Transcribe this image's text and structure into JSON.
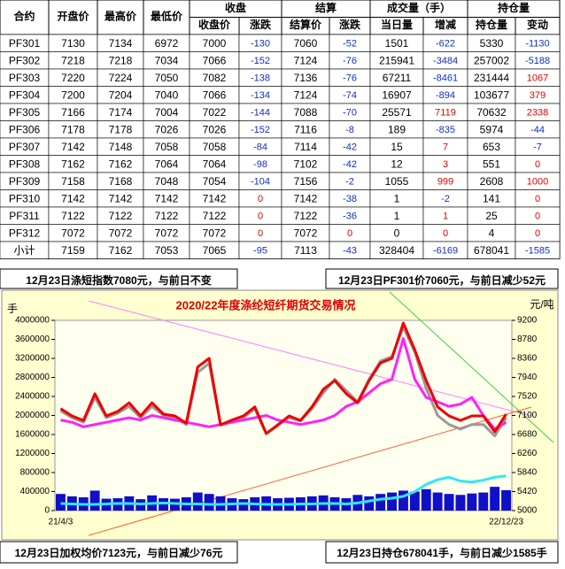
{
  "table": {
    "header_row1": [
      "合约",
      "开盘价",
      "最高价",
      "最低价",
      "收盘",
      "结算",
      "成交量（手）",
      "持仓量"
    ],
    "header_row2": [
      "收盘价",
      "涨跌",
      "结算价",
      "涨跌",
      "当日量",
      "增减",
      "持仓量",
      "变动"
    ],
    "rows": [
      [
        "PF301",
        7130,
        7134,
        6972,
        7000,
        -130,
        7060,
        -52,
        1501,
        -622,
        5330,
        -1130
      ],
      [
        "PF302",
        7218,
        7218,
        7034,
        7066,
        -152,
        7124,
        -76,
        215941,
        -3484,
        257002,
        -5188
      ],
      [
        "PF303",
        7220,
        7224,
        7050,
        7082,
        -138,
        7136,
        -76,
        67211,
        -8461,
        231444,
        1067
      ],
      [
        "PF304",
        7200,
        7204,
        7040,
        7066,
        -134,
        7124,
        -74,
        16907,
        -894,
        103677,
        379
      ],
      [
        "PF305",
        7166,
        7174,
        7004,
        7022,
        -144,
        7088,
        -70,
        25571,
        7119,
        70632,
        2338
      ],
      [
        "PF306",
        7178,
        7178,
        7026,
        7026,
        -152,
        7116,
        -8,
        189,
        -835,
        5974,
        -44
      ],
      [
        "PF307",
        7142,
        7148,
        7058,
        7058,
        -84,
        7114,
        -42,
        15,
        7,
        653,
        -7
      ],
      [
        "PF308",
        7162,
        7162,
        7064,
        7064,
        -98,
        7102,
        -42,
        12,
        3,
        551,
        0
      ],
      [
        "PF309",
        7158,
        7168,
        7048,
        7054,
        -104,
        7156,
        -2,
        1055,
        999,
        2608,
        1000
      ],
      [
        "PF310",
        7142,
        7142,
        7142,
        7142,
        0,
        7142,
        -38,
        1,
        -2,
        141,
        0
      ],
      [
        "PF311",
        7122,
        7122,
        7122,
        7122,
        0,
        7122,
        -36,
        1,
        1,
        25,
        0
      ],
      [
        "PF312",
        7072,
        7072,
        7072,
        7072,
        0,
        7072,
        0,
        0,
        0,
        4,
        0
      ],
      [
        "小计",
        7159,
        7162,
        7053,
        7065,
        -95,
        7113,
        -43,
        328404,
        -6169,
        678041,
        -1585
      ]
    ]
  },
  "notes": [
    "12月23日涤短指数7080元，与前日不变",
    "12月23日PF301价7060元，与前日减少52元",
    "12月23日加权均价7123元，与前日减少76元",
    "12月23日持仓678041手，与前日减少1585手"
  ],
  "chart_data": {
    "type": "combo",
    "title": "2020/22年度涤纶短纤期货交易情况",
    "y_unit": "手",
    "y2_unit": "元/吨",
    "categories": [
      "21/4/3",
      null,
      null,
      null,
      null,
      null,
      null,
      null,
      null,
      null,
      null,
      null,
      null,
      null,
      null,
      null,
      null,
      null,
      null,
      null,
      null,
      null,
      null,
      null,
      null,
      null,
      null,
      null,
      null,
      null,
      null,
      null,
      null,
      null,
      null,
      null,
      null,
      null,
      null,
      "22/12/23"
    ],
    "ylim": [
      0,
      4000000
    ],
    "yticks": [
      0,
      400000,
      800000,
      1200000,
      1600000,
      2000000,
      2400000,
      2800000,
      3200000,
      3600000,
      4000000
    ],
    "y2lim": [
      5000,
      9200
    ],
    "y2ticks": [
      5000,
      5420,
      5840,
      6260,
      6680,
      7100,
      7520,
      7940,
      8360,
      8780,
      9200
    ],
    "series": [
      {
        "type": "bar",
        "color": "#1010c8",
        "values": [
          350000,
          300000,
          280000,
          420000,
          250000,
          260000,
          300000,
          240000,
          320000,
          260000,
          250000,
          280000,
          380000,
          350000,
          300000,
          260000,
          240000,
          280000,
          300000,
          260000,
          270000,
          280000,
          300000,
          320000,
          280000,
          260000,
          330000,
          300000,
          350000,
          380000,
          420000,
          400000,
          450000,
          380000,
          350000,
          330000,
          360000,
          380000,
          500000,
          430000
        ]
      },
      {
        "type": "line",
        "color": "#30e8f0",
        "width": 3,
        "values": [
          150000,
          140000,
          130000,
          130000,
          140000,
          150000,
          150000,
          140000,
          150000,
          160000,
          150000,
          140000,
          140000,
          130000,
          130000,
          140000,
          150000,
          140000,
          130000,
          130000,
          130000,
          140000,
          140000,
          150000,
          150000,
          140000,
          160000,
          200000,
          240000,
          260000,
          300000,
          400000,
          550000,
          650000,
          700000,
          620000,
          600000,
          640000,
          700000,
          730000
        ]
      },
      {
        "type": "line",
        "axis": "y2",
        "color": "#999999",
        "width": 3,
        "values": [
          7200,
          7050,
          6950,
          7500,
          7050,
          7150,
          7300,
          7050,
          7300,
          7100,
          7050,
          6900,
          8050,
          8250,
          6900,
          6980,
          7050,
          7250,
          6700,
          6880,
          7050,
          6980,
          7250,
          7600,
          7900,
          7650,
          7400,
          7900,
          8300,
          8400,
          9050,
          8500,
          7700,
          7100,
          6900,
          6800,
          6900,
          6900,
          6650,
          7050
        ]
      },
      {
        "type": "line",
        "axis": "y2",
        "color": "#ff20ff",
        "width": 3,
        "values": [
          7000,
          6950,
          6850,
          6900,
          6950,
          7000,
          7050,
          7000,
          7100,
          7050,
          7000,
          6950,
          6900,
          6850,
          6900,
          6950,
          7000,
          7050,
          7100,
          7000,
          6950,
          6900,
          6950,
          7000,
          7100,
          7300,
          7400,
          7600,
          7800,
          7900,
          8800,
          7900,
          7500,
          7400,
          7300,
          7350,
          7500,
          7100,
          6800,
          6950
        ]
      },
      {
        "type": "line",
        "axis": "y2",
        "color": "#ee0000",
        "width": 3,
        "values": [
          7250,
          7090,
          6990,
          7580,
          7090,
          7190,
          7380,
          7090,
          7380,
          7130,
          7090,
          6930,
          8170,
          8360,
          6890,
          7000,
          7090,
          7290,
          6700,
          6890,
          7090,
          6990,
          7290,
          7680,
          7870,
          7580,
          7380,
          7870,
          8260,
          8360,
          9140,
          8550,
          7870,
          7290,
          7090,
          6990,
          7090,
          7090,
          6740,
          7130
        ]
      }
    ]
  }
}
